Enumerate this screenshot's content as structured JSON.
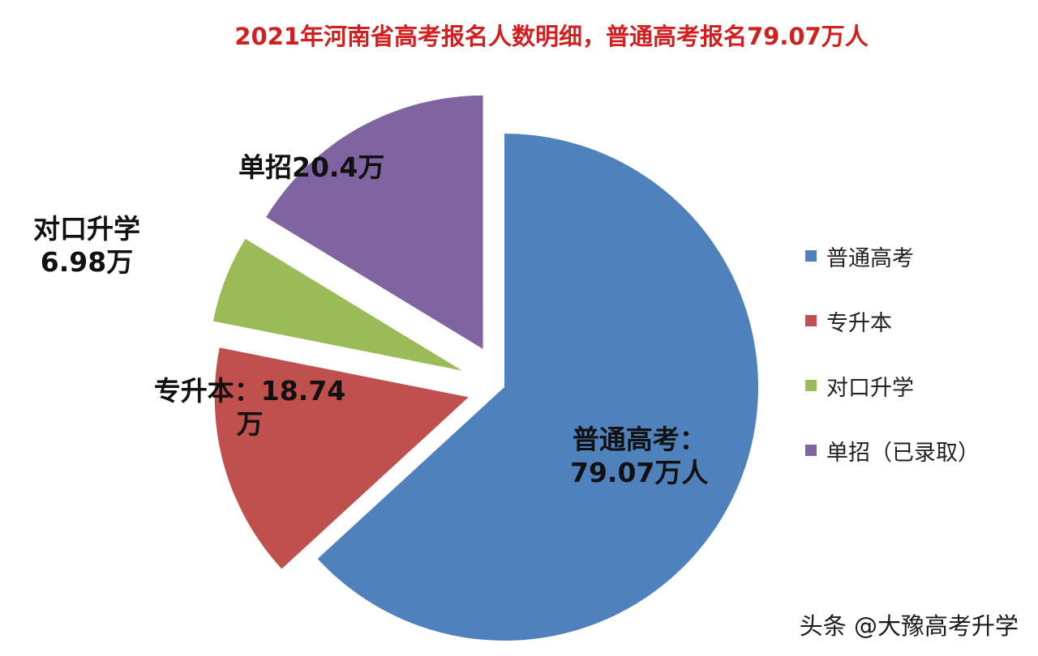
{
  "chart_data": {
    "type": "pie",
    "title": "2021年河南省高考报名人数明细，普通高考报名79.07万人",
    "slices": [
      {
        "name": "普通高考",
        "value": 79.07,
        "label_line1": "普通高考：",
        "label_line2": "79.07万人",
        "color": "#4f81bd"
      },
      {
        "name": "专升本",
        "value": 18.74,
        "label_line1": "专升本：18.74",
        "label_line2": "万",
        "color": "#c0504d"
      },
      {
        "name": "对口升学",
        "value": 6.98,
        "label_line1": "对口升学",
        "label_line2": "6.98万",
        "color": "#9bbb59"
      },
      {
        "name": "单招（已录取）",
        "value": 20.4,
        "label_line1": "单招20.4万",
        "label_line2": "",
        "color": "#8064a2"
      }
    ],
    "legend_position": "right"
  },
  "legend": {
    "items": [
      {
        "label": "普通高考",
        "color": "#4f81bd"
      },
      {
        "label": "专升本",
        "color": "#c0504d"
      },
      {
        "label": "对口升学",
        "color": "#9bbb59"
      },
      {
        "label": "单招（已录取）",
        "color": "#8064a2"
      }
    ]
  },
  "watermark": "头条 @大豫高考升学"
}
